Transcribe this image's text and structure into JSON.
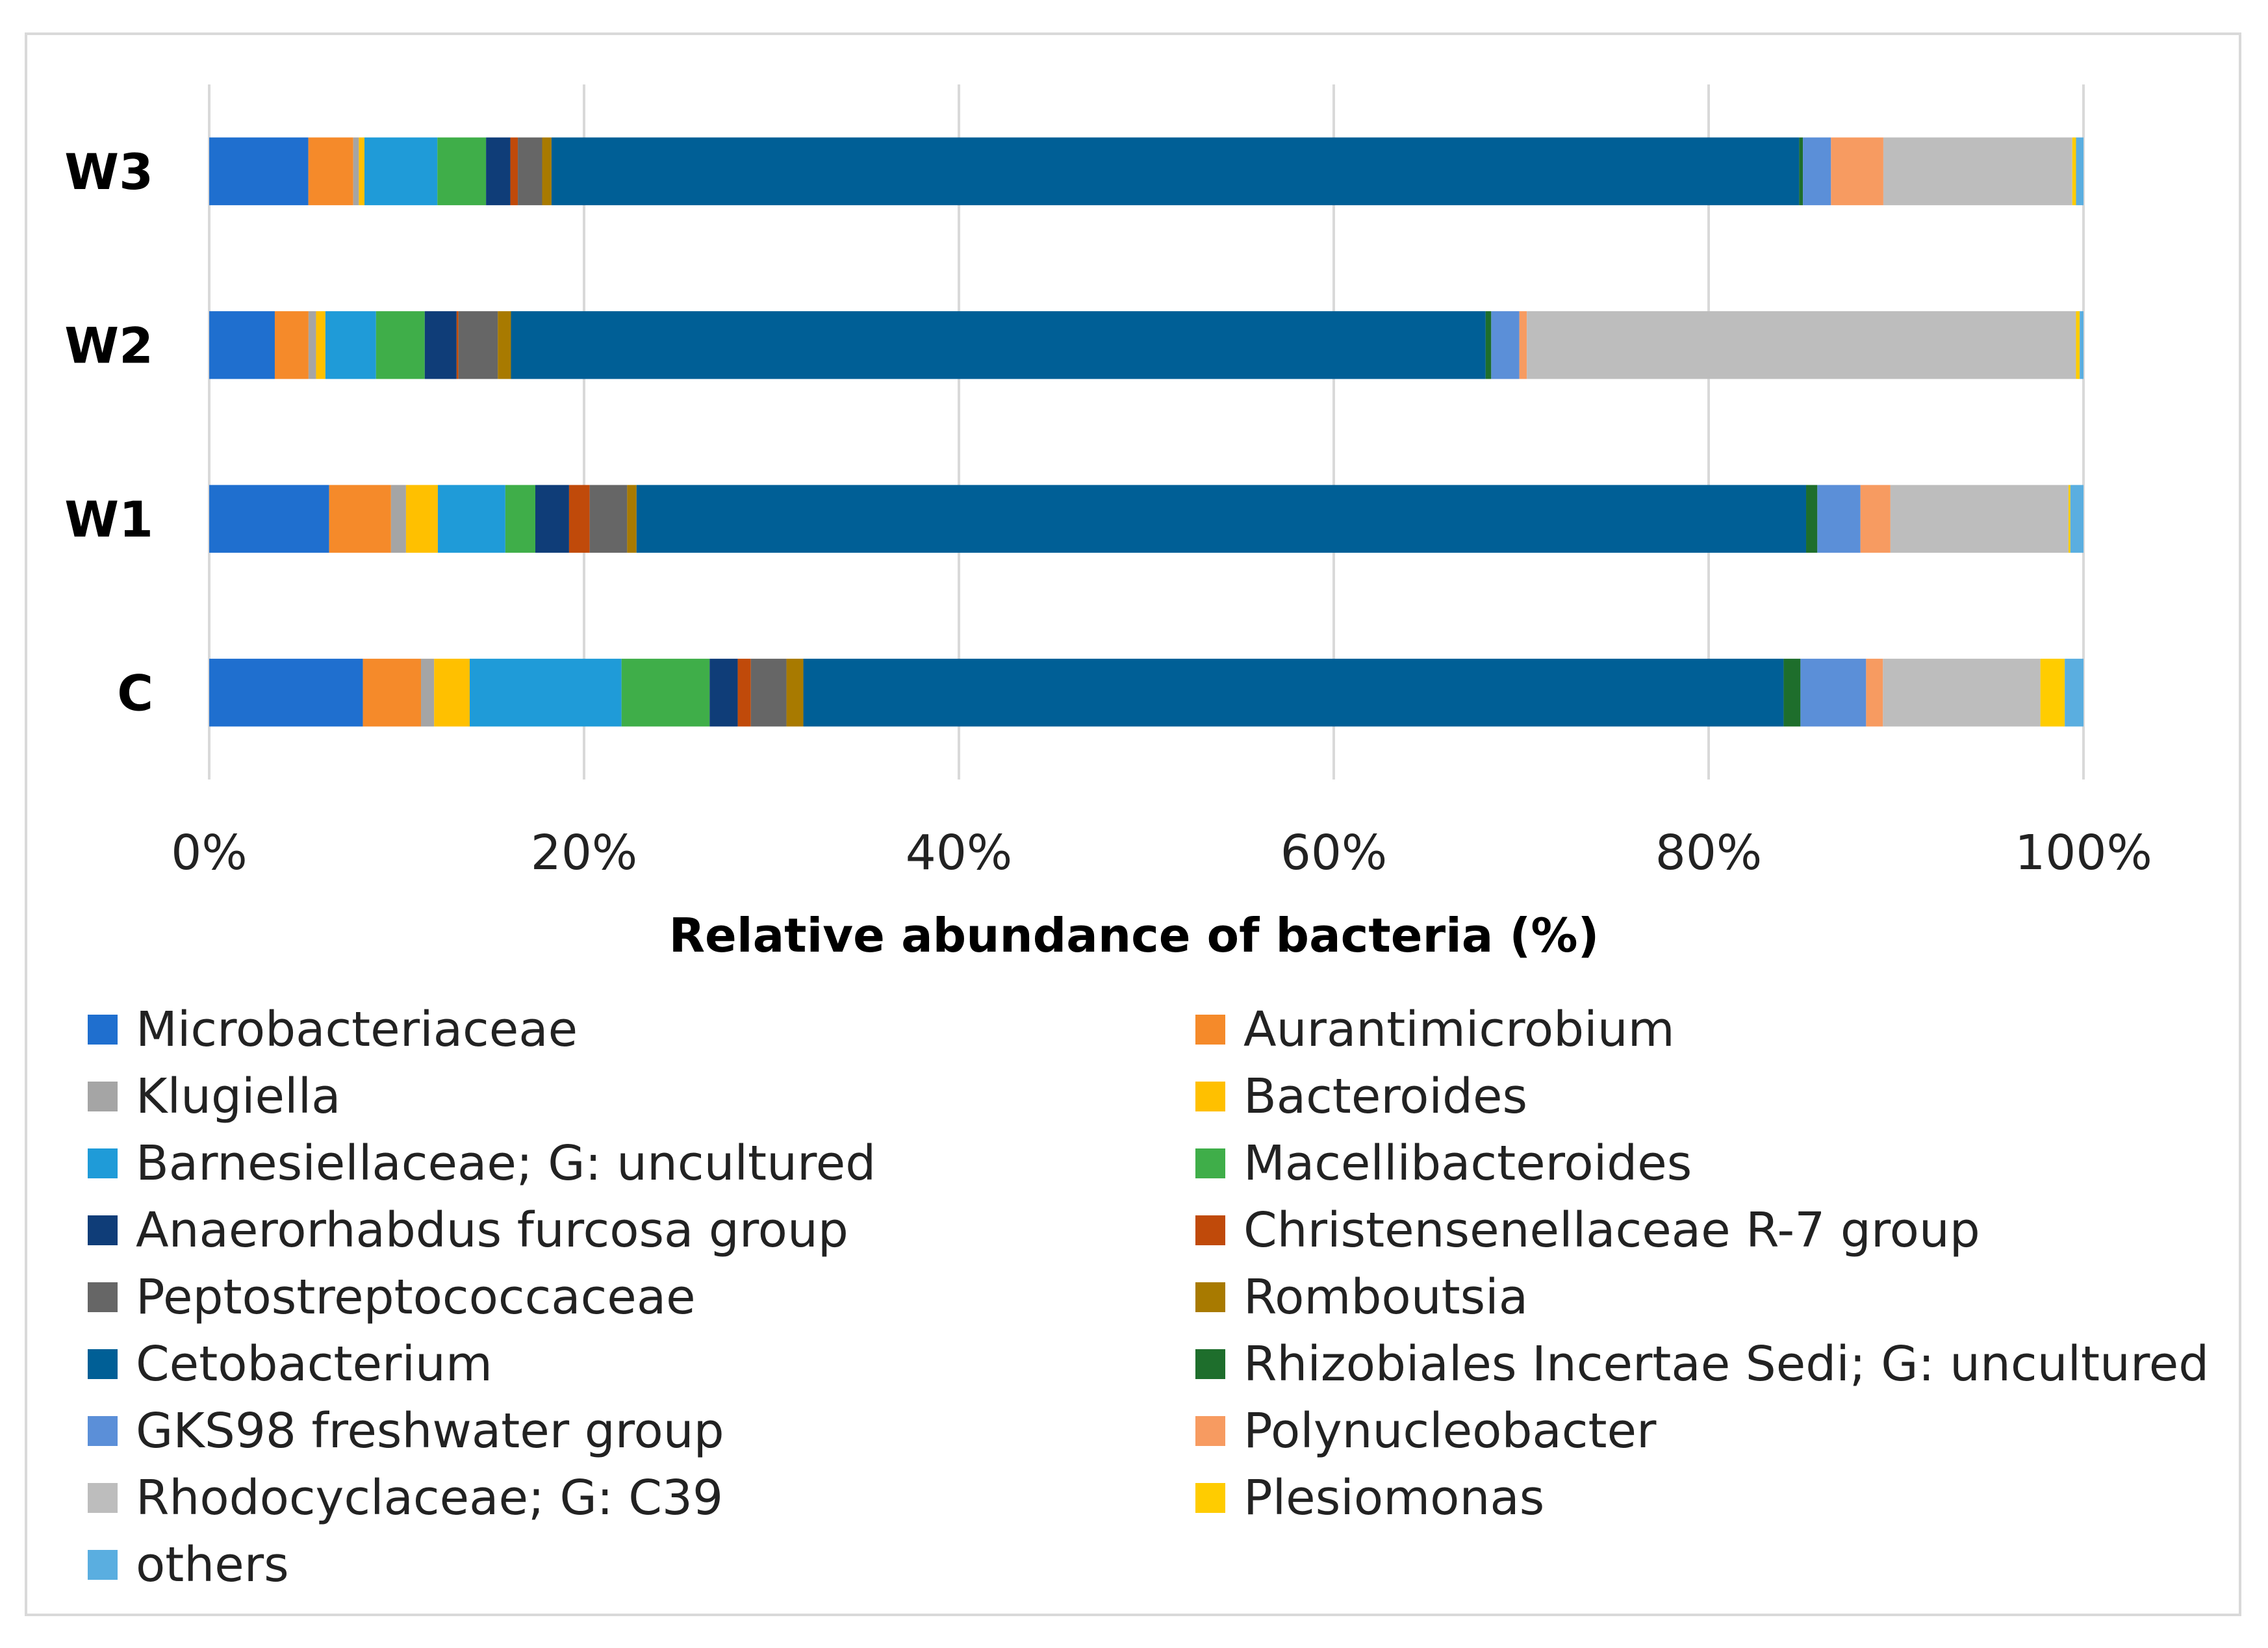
{
  "chart_data": {
    "type": "bar",
    "orientation": "horizontal",
    "stacked": "percent",
    "title": "",
    "xlabel": "Relative abundance of bacteria (%)",
    "ylabel": "",
    "xlim": [
      0,
      100
    ],
    "xticks": [
      "0%",
      "20%",
      "40%",
      "60%",
      "80%",
      "100%"
    ],
    "categories": [
      "C",
      "W1",
      "W2",
      "W3"
    ],
    "grid": true,
    "legend_position": "bottom",
    "series": [
      {
        "name": "Microbacteriaceae",
        "color": "#1f6fcf",
        "values": [
          8.2,
          6.4,
          3.5,
          5.3
        ]
      },
      {
        "name": "Aurantimicrobium",
        "color": "#f58a2a",
        "values": [
          3.1,
          3.3,
          1.8,
          2.4
        ]
      },
      {
        "name": "Klugiella",
        "color": "#a5a5a5",
        "values": [
          0.7,
          0.8,
          0.4,
          0.3
        ]
      },
      {
        "name": "Bacteroides",
        "color": "#ffc000",
        "values": [
          1.9,
          1.7,
          0.5,
          0.3
        ]
      },
      {
        "name": "Barnesiellaceae; G: uncultured",
        "color": "#1f9bd8",
        "values": [
          8.1,
          3.6,
          2.7,
          3.9
        ]
      },
      {
        "name": "Macellibacteroides",
        "color": "#3fae49",
        "values": [
          4.7,
          1.6,
          2.6,
          2.6
        ]
      },
      {
        "name": "Anaerorhabdus furcosa group",
        "color": "#0f3d78",
        "values": [
          1.5,
          1.8,
          1.7,
          1.3
        ]
      },
      {
        "name": "Christensenellaceae R-7 group",
        "color": "#c04a0a",
        "values": [
          0.7,
          1.1,
          0.1,
          0.4
        ]
      },
      {
        "name": "Peptostreptococcaceae",
        "color": "#666666",
        "values": [
          1.9,
          2.0,
          2.1,
          1.3
        ]
      },
      {
        "name": "Romboutsia",
        "color": "#a87a00",
        "values": [
          0.9,
          0.5,
          0.7,
          0.5
        ]
      },
      {
        "name": "Cetobacterium",
        "color": "#005f96",
        "values": [
          52.3,
          62.4,
          52.0,
          66.7
        ]
      },
      {
        "name": "Rhizobiales Incertae Sedi; G: uncultured",
        "color": "#1e6e2c",
        "values": [
          0.9,
          0.6,
          0.3,
          0.2
        ]
      },
      {
        "name": "GKS98 freshwater group",
        "color": "#5b8fd8",
        "values": [
          3.5,
          2.3,
          1.5,
          1.5
        ]
      },
      {
        "name": "Polynucleobacter",
        "color": "#f79b61",
        "values": [
          0.9,
          1.6,
          0.4,
          2.8
        ]
      },
      {
        "name": "Rhodocyclaceae; G: C39",
        "color": "#bdbdbd",
        "values": [
          8.4,
          9.5,
          29.3,
          10.1
        ]
      },
      {
        "name": "Plesiomonas",
        "color": "#ffcc00",
        "values": [
          1.3,
          0.1,
          0.2,
          0.2
        ]
      },
      {
        "name": "others",
        "color": "#5aaee0",
        "values": [
          1.0,
          0.7,
          0.2,
          0.4
        ]
      }
    ]
  }
}
